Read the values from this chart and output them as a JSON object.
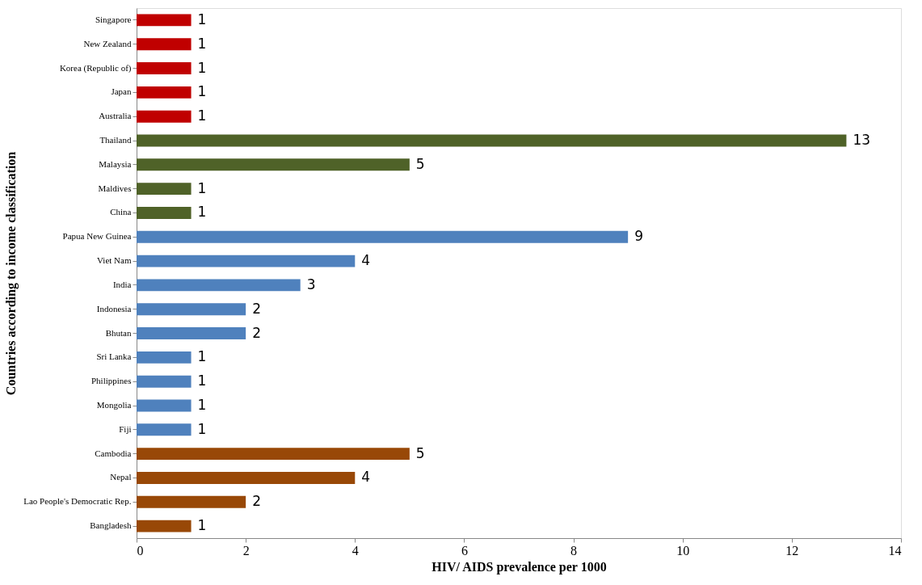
{
  "chart_data": {
    "type": "bar",
    "orientation": "horizontal",
    "xlabel": "HIV/ AIDS prevalence per 1000",
    "ylabel": "Countries according to income classification",
    "categories": [
      "Singapore",
      "New Zealand",
      "Korea (Republic of)",
      "Japan",
      "Australia",
      "Thailand",
      "Malaysia",
      "Maldives",
      "China",
      "Papua New Guinea",
      "Viet Nam",
      "India",
      "Indonesia",
      "Bhutan",
      "Sri Lanka",
      "Philippines",
      "Mongolia",
      "Fiji",
      "Cambodia",
      "Nepal",
      "Lao People's Democratic  Rep.",
      "Bangladesh"
    ],
    "values": [
      1,
      1,
      1,
      1,
      1,
      13,
      5,
      1,
      1,
      9,
      4,
      3,
      2,
      2,
      1,
      1,
      1,
      1,
      5,
      4,
      2,
      1
    ],
    "colors": [
      "#c00000",
      "#c00000",
      "#c00000",
      "#c00000",
      "#c00000",
      "#4f6228",
      "#4f6228",
      "#4f6228",
      "#4f6228",
      "#4f81bd",
      "#4f81bd",
      "#4f81bd",
      "#4f81bd",
      "#4f81bd",
      "#4f81bd",
      "#4f81bd",
      "#4f81bd",
      "#4f81bd",
      "#984807",
      "#984807",
      "#984807",
      "#984807"
    ],
    "xlim": [
      0,
      14
    ],
    "xticks": [
      0,
      2,
      4,
      6,
      8,
      10,
      12,
      14
    ],
    "grid": false,
    "data_labels": true
  }
}
